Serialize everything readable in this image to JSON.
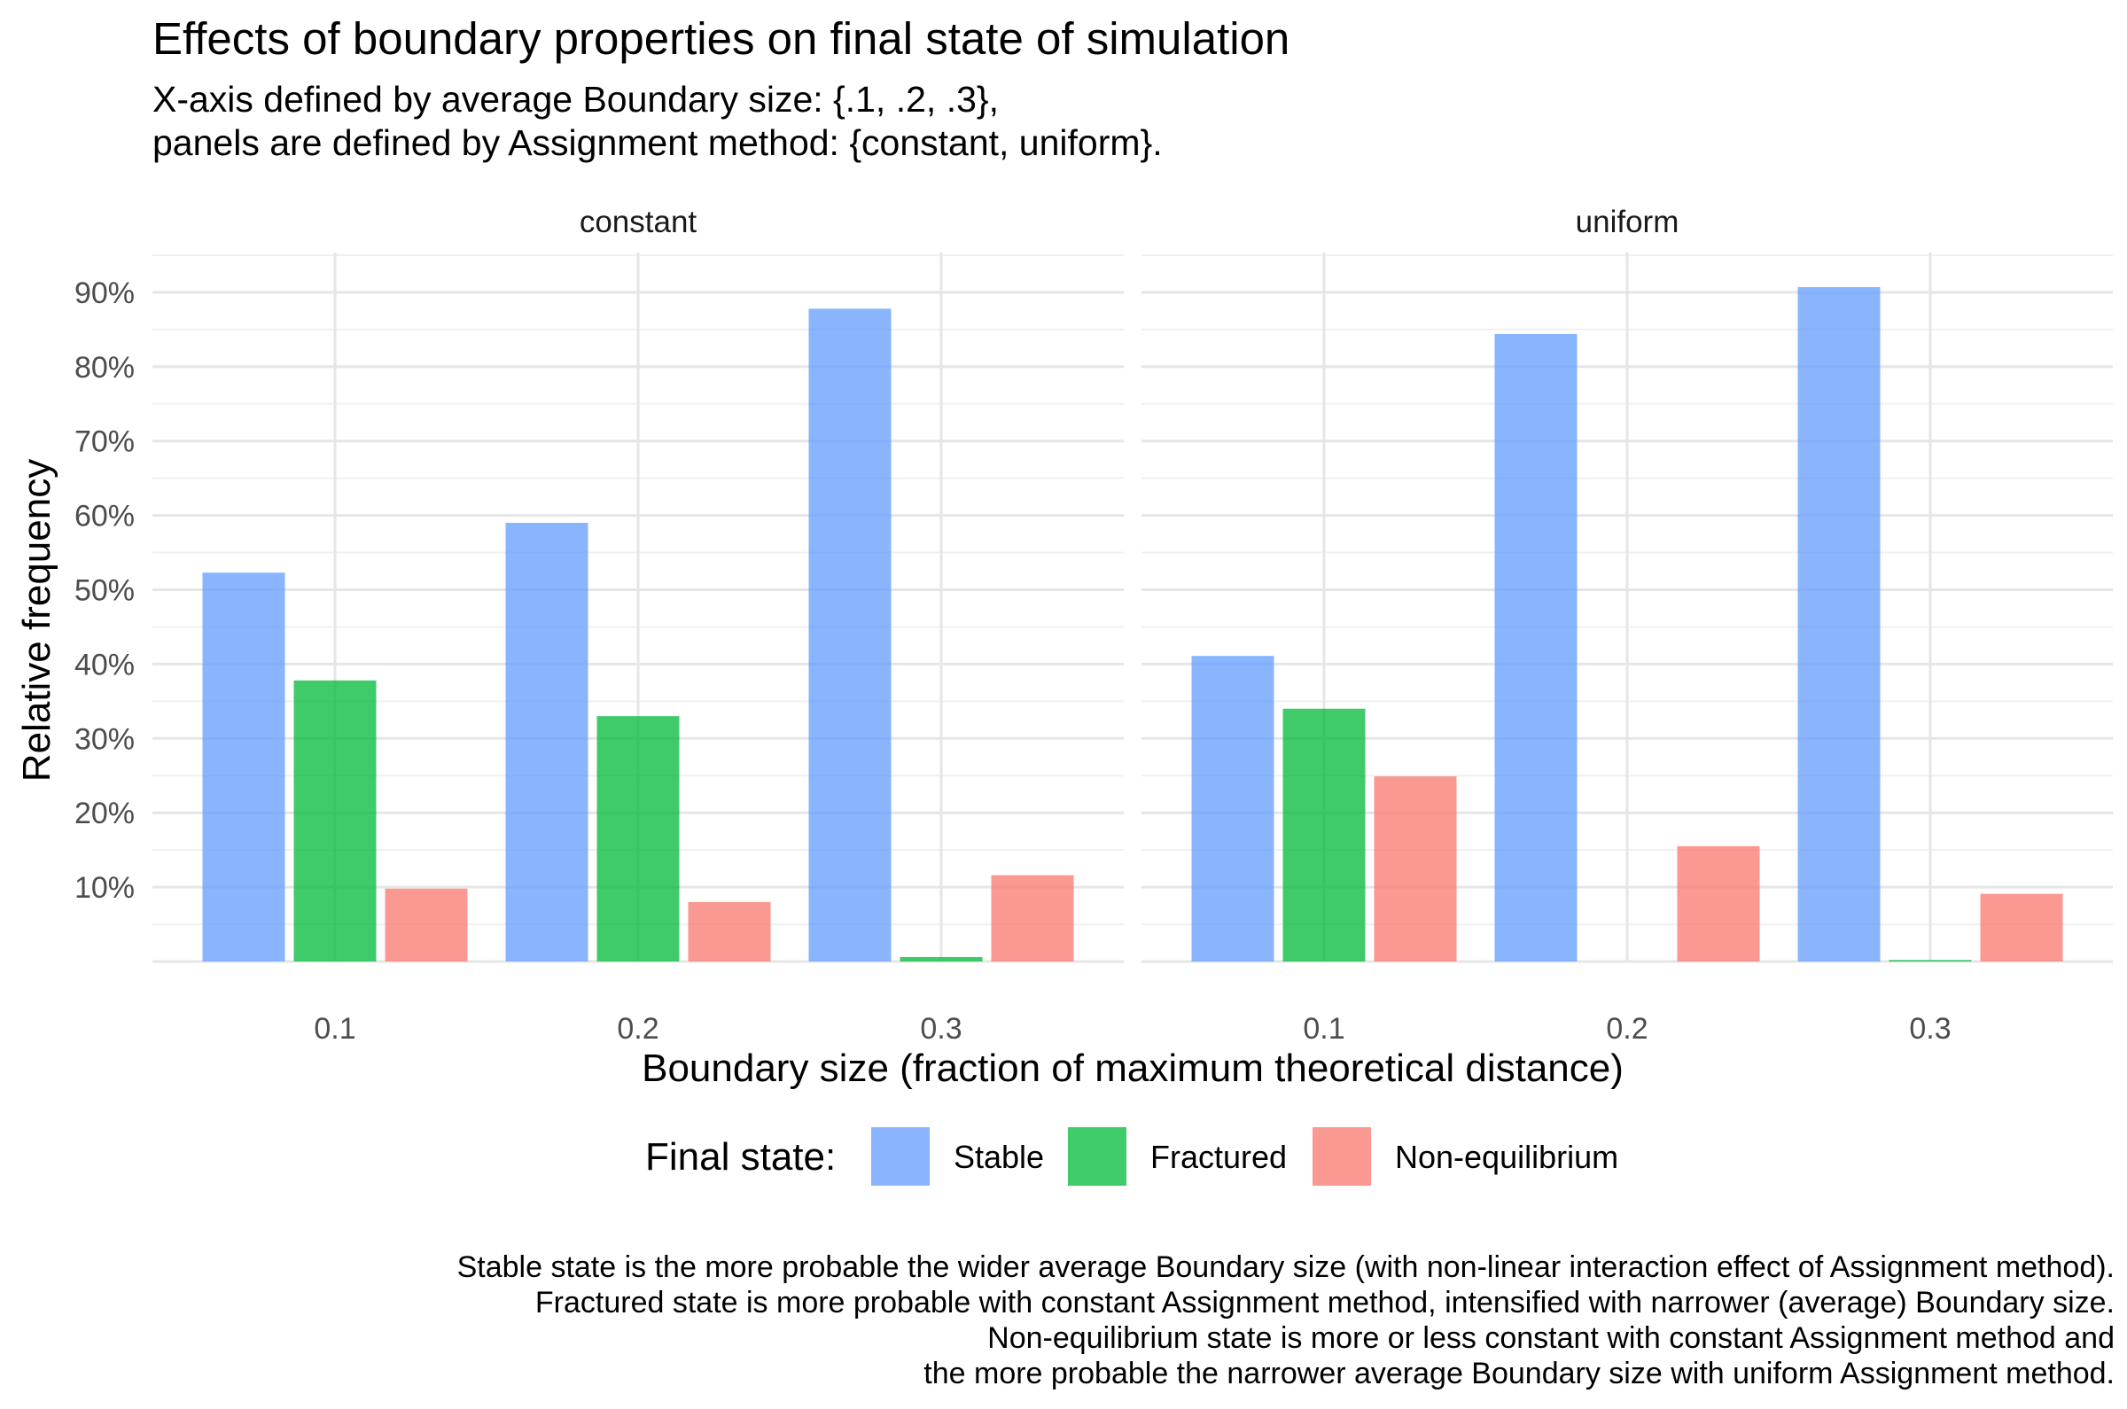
{
  "title": "Effects of boundary properties on final state of simulation",
  "subtitle": "X-axis defined by average Boundary size: {.1, .2, .3},\npanels are defined by Assignment method: {constant, uniform}.",
  "caption": "Stable state is the more probable the wider average Boundary size (with non-linear interaction effect of Assignment method).\nFractured state is more probable with constant Assignment method, intensified with narrower (average) Boundary size.\nNon-equilibrium state is more or less constant with constant Assignment method and\nthe more probable the narrower average Boundary size with uniform Assignment method.",
  "chart_data": {
    "type": "bar",
    "title": "Effects of boundary properties on final state of simulation",
    "xlabel": "Boundary size (fraction of maximum theoretical distance)",
    "ylabel": "Relative frequency",
    "categories": [
      "0.1",
      "0.2",
      "0.3"
    ],
    "y_ticks": [
      "10%",
      "20%",
      "30%",
      "40%",
      "50%",
      "60%",
      "70%",
      "80%",
      "90%"
    ],
    "ylim": [
      0,
      95
    ],
    "grid": true,
    "legend_title": "Final state:",
    "legend_position": "bottom",
    "series_colors": [
      "#619CFF",
      "#00BA38",
      "#F8766D"
    ],
    "panels": [
      {
        "name": "constant",
        "series": [
          {
            "name": "Stable",
            "values": [
              52.3,
              59.0,
              87.8
            ]
          },
          {
            "name": "Fractured",
            "values": [
              37.8,
              33.0,
              0.6
            ]
          },
          {
            "name": "Non-equilibrium",
            "values": [
              9.8,
              8.0,
              11.6
            ]
          }
        ]
      },
      {
        "name": "uniform",
        "series": [
          {
            "name": "Stable",
            "values": [
              41.1,
              84.4,
              90.7
            ]
          },
          {
            "name": "Fractured",
            "values": [
              34.0,
              0.0,
              0.2
            ]
          },
          {
            "name": "Non-equilibrium",
            "values": [
              24.9,
              15.5,
              9.1
            ]
          }
        ]
      }
    ]
  }
}
